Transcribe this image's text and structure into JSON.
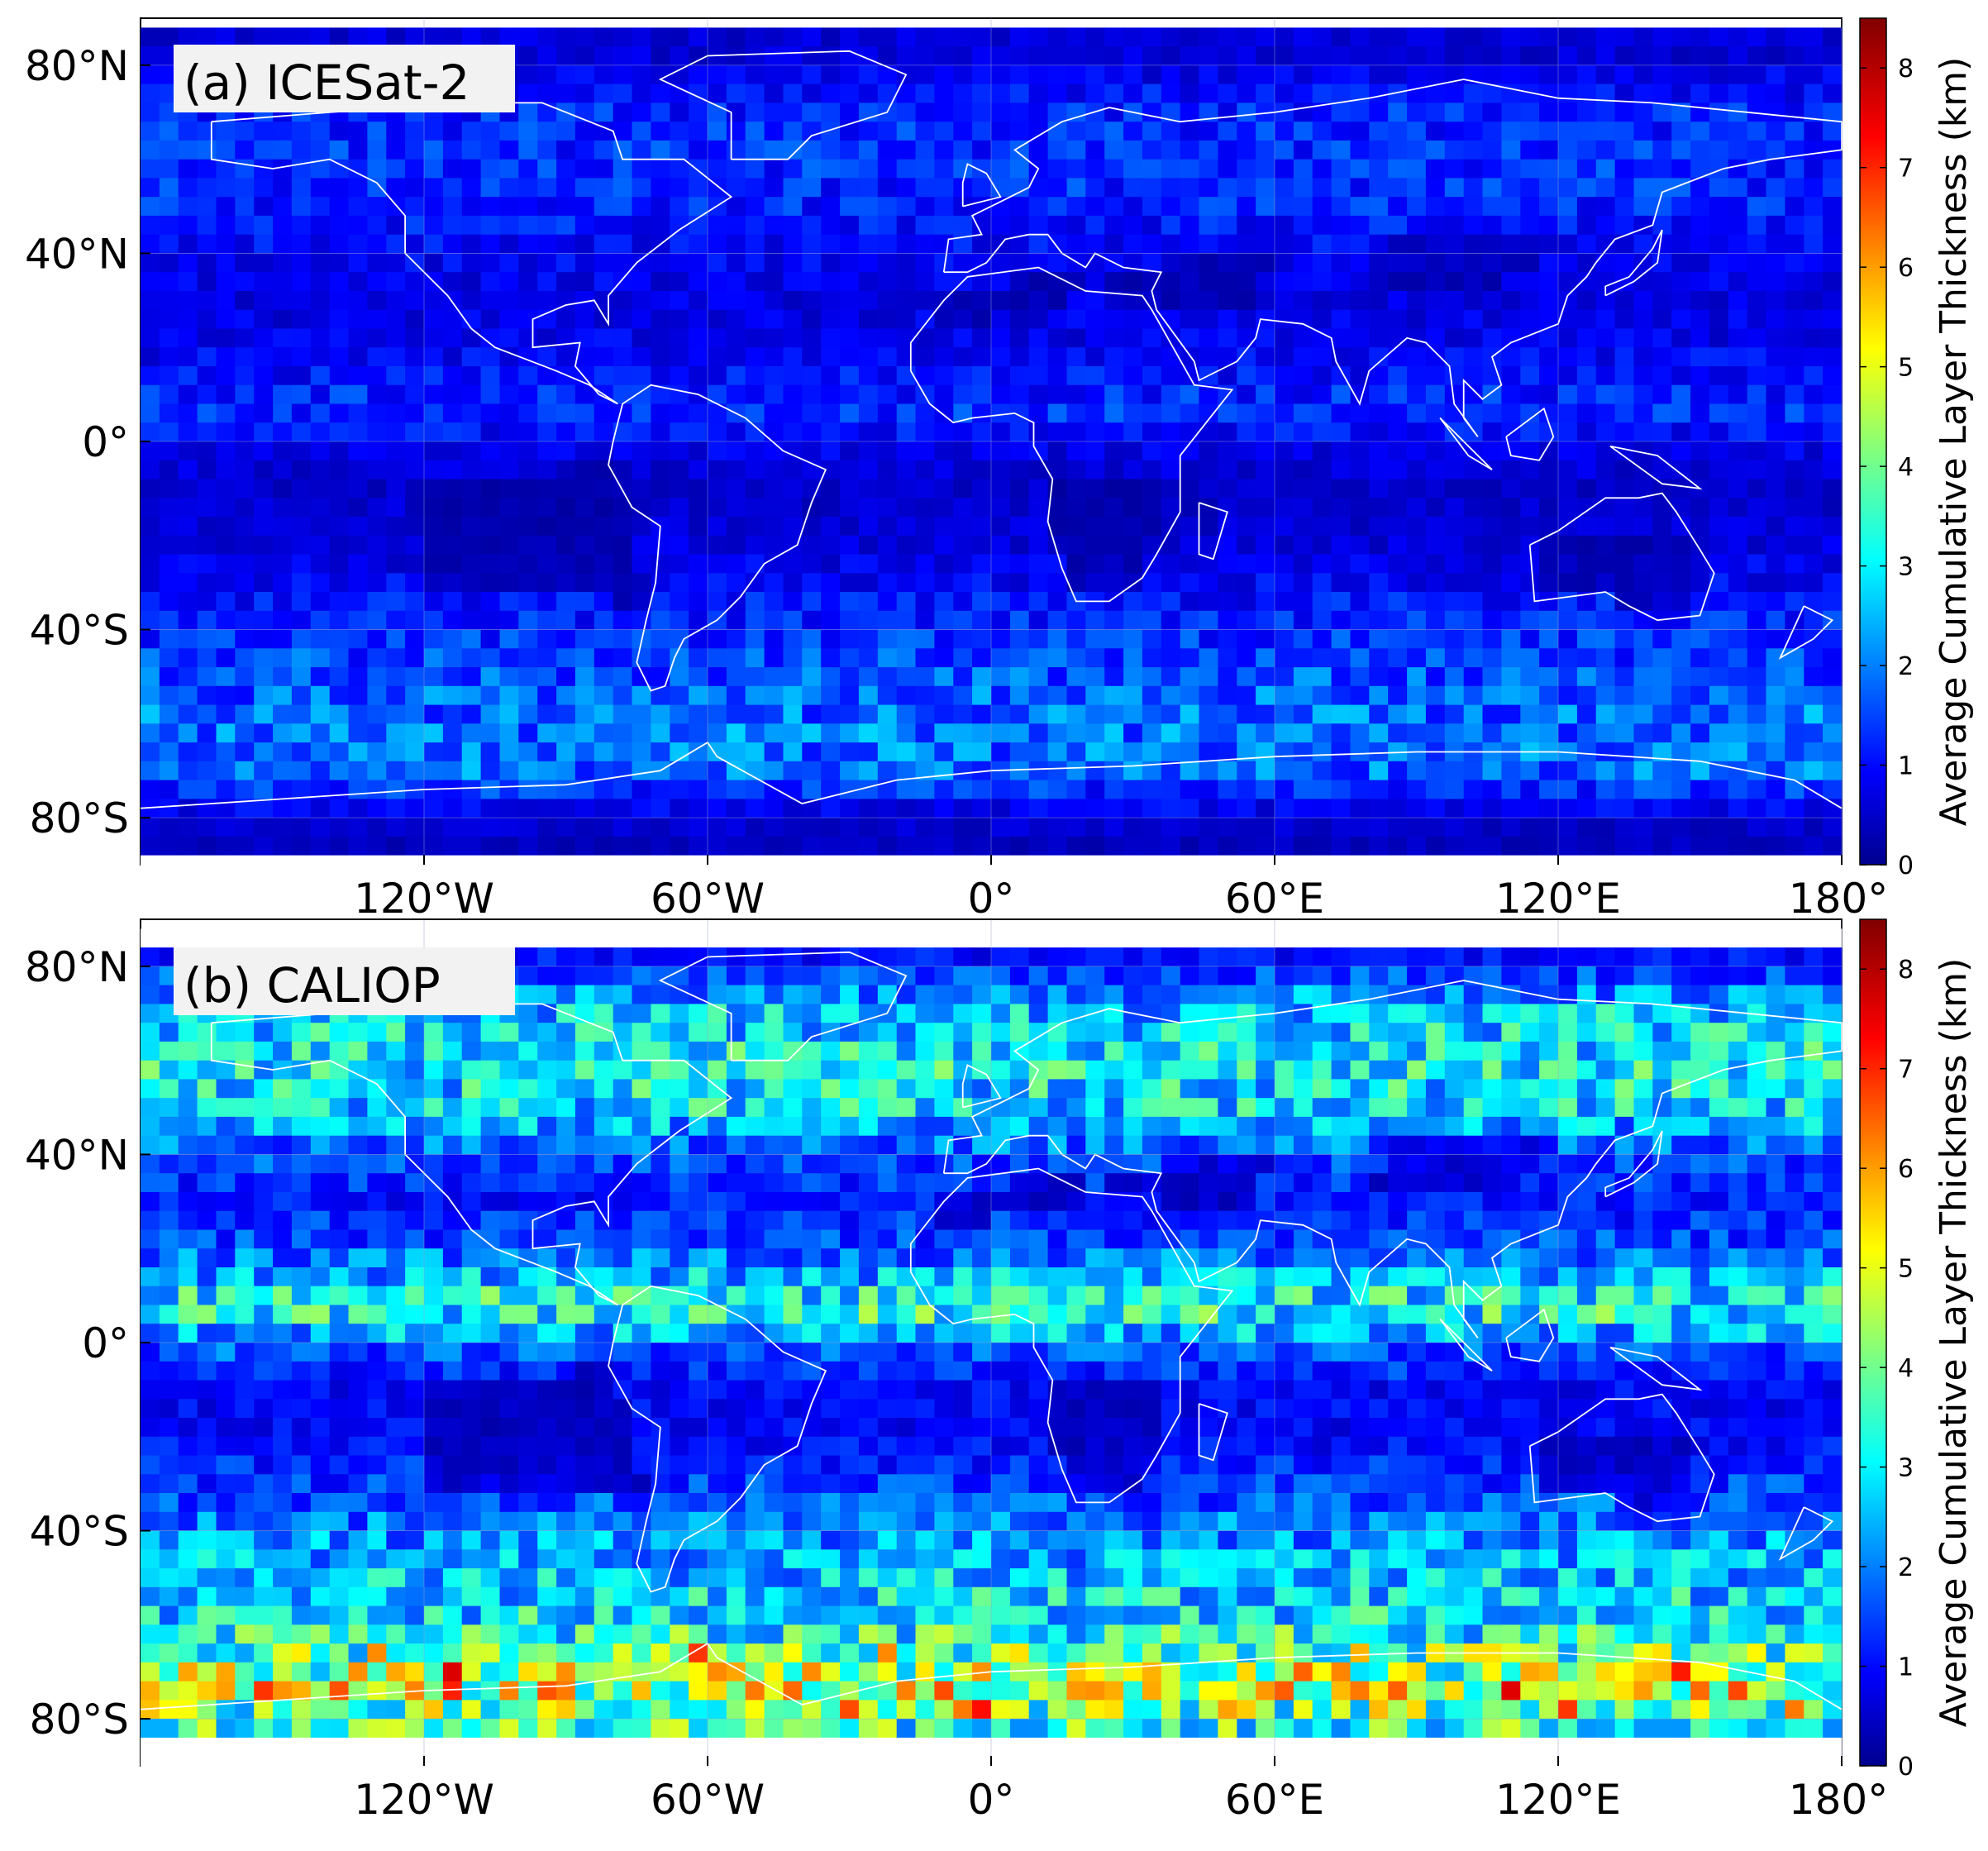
{
  "figure": {
    "panels": [
      {
        "id": "a",
        "label": "(a) ICESat-2",
        "colorbar_label": "Average Cumulative Layer Thickness (km)",
        "colorbar_ticks": [
          "0",
          "1",
          "2",
          "3",
          "4",
          "5",
          "6",
          "7",
          "8"
        ]
      },
      {
        "id": "b",
        "label": "(b) CALIOP",
        "colorbar_label": "Average Cumulative Layer Thickness (km)",
        "colorbar_ticks": [
          "0",
          "1",
          "2",
          "3",
          "4",
          "5",
          "6",
          "7",
          "8"
        ]
      }
    ],
    "lat_ticks": [
      {
        "lat": 80,
        "label": "80°N"
      },
      {
        "lat": 40,
        "label": "40°N"
      },
      {
        "lat": 0,
        "label": "0°"
      },
      {
        "lat": -40,
        "label": "40°S"
      },
      {
        "lat": -80,
        "label": "80°S"
      }
    ],
    "lon_ticks": [
      {
        "lon": -120,
        "label": "120°W"
      },
      {
        "lon": -60,
        "label": "60°W"
      },
      {
        "lon": 0,
        "label": "0°"
      },
      {
        "lon": 60,
        "label": "60°E"
      },
      {
        "lon": 120,
        "label": "120°E"
      },
      {
        "lon": 180,
        "label": "180°"
      }
    ]
  },
  "chart_data": [
    {
      "type": "heatmap",
      "title": "(a) ICESat-2",
      "colorbar_label": "Average Cumulative Layer Thickness (km)",
      "colorbar_range": [
        0,
        8.5
      ],
      "colormap": "jet",
      "xlim": [
        -180,
        180
      ],
      "ylim": [
        -90,
        90
      ],
      "grid": true,
      "zonal_mean_profile": {
        "lat": [
          82,
          70,
          60,
          50,
          40,
          30,
          20,
          10,
          5,
          0,
          -10,
          -20,
          -30,
          -40,
          -50,
          -60,
          -70,
          -80,
          -85
        ],
        "value": [
          0.6,
          1.2,
          1.3,
          1.2,
          0.9,
          0.7,
          0.8,
          1.2,
          1.3,
          0.8,
          0.5,
          0.6,
          0.9,
          1.3,
          1.6,
          1.9,
          1.8,
          0.6,
          0.4
        ]
      }
    },
    {
      "type": "heatmap",
      "title": "(b) CALIOP",
      "colorbar_label": "Average Cumulative Layer Thickness (km)",
      "colorbar_range": [
        0,
        8.5
      ],
      "colormap": "jet",
      "xlim": [
        -180,
        180
      ],
      "ylim": [
        -90,
        90
      ],
      "grid": true,
      "zonal_mean_profile": {
        "lat": [
          82,
          70,
          60,
          50,
          40,
          30,
          20,
          10,
          5,
          0,
          -10,
          -20,
          -30,
          -40,
          -50,
          -60,
          -70,
          -75,
          -80
        ],
        "value": [
          1.0,
          2.6,
          3.0,
          2.8,
          1.6,
          1.1,
          1.6,
          3.0,
          3.2,
          1.8,
          0.9,
          0.9,
          1.4,
          2.0,
          2.6,
          3.0,
          4.3,
          4.8,
          3.4
        ]
      }
    }
  ]
}
